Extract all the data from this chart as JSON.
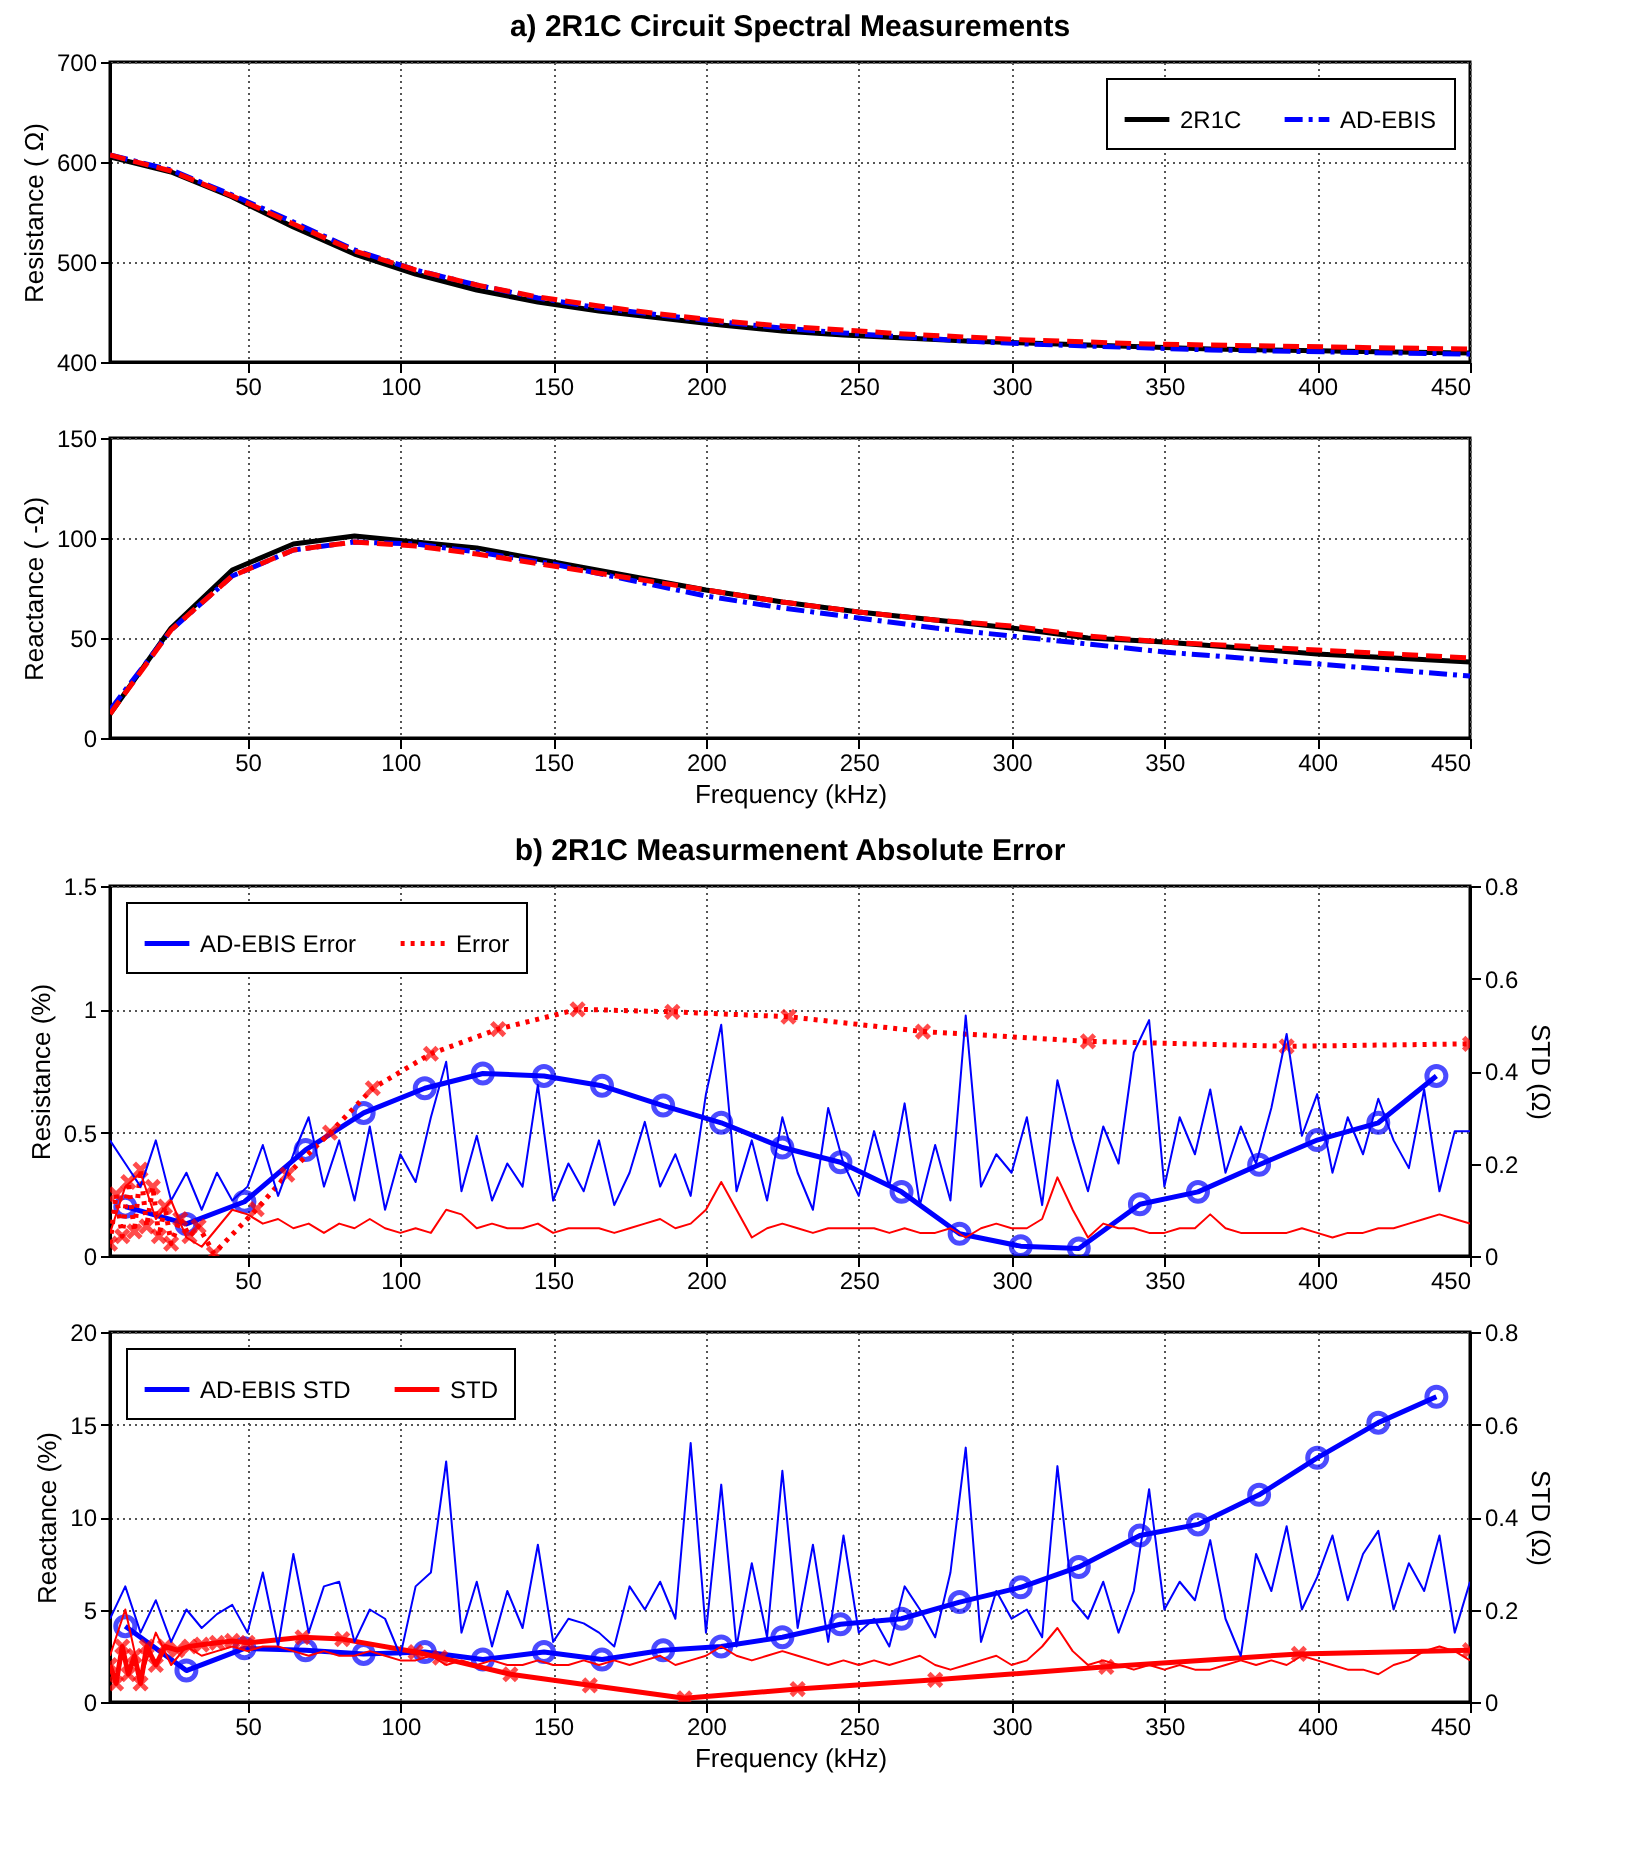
{
  "chart_data": [
    {
      "type": "line",
      "title": "a) 2R1C Circuit Spectral Measurements",
      "ylabel": "Resistance ( Ω)",
      "xlim": [
        5,
        450
      ],
      "xticks": [
        50,
        100,
        150,
        200,
        250,
        300,
        350,
        400,
        450
      ],
      "ylim": [
        400,
        700
      ],
      "yticks": [
        400,
        500,
        600,
        700
      ],
      "grid": true,
      "legend": "top right",
      "x": [
        5,
        25,
        45,
        65,
        85,
        105,
        125,
        145,
        165,
        185,
        205,
        225,
        245,
        265,
        285,
        305,
        325,
        345,
        365,
        385,
        405,
        425,
        450
      ],
      "series": [
        {
          "name": "2R1C",
          "color": "#000000",
          "line_style": "solid",
          "values": [
            605,
            590,
            565,
            535,
            508,
            488,
            472,
            460,
            451,
            444,
            437,
            431,
            427,
            424,
            421,
            419,
            417,
            415,
            413,
            412,
            411,
            410,
            409
          ]
        },
        {
          "name": "AD-EBIS",
          "color": "#0000ff",
          "line_style": "dashdot",
          "values": [
            607,
            592,
            567,
            540,
            512,
            492,
            477,
            464,
            454,
            447,
            440,
            434,
            429,
            425,
            421,
            418,
            416,
            414,
            412,
            411,
            410,
            409,
            408
          ]
        },
        {
          "color": "#ff0000",
          "line_style": "dashed",
          "values": [
            607,
            591,
            566,
            538,
            511,
            492,
            477,
            465,
            456,
            448,
            441,
            436,
            432,
            428,
            425,
            422,
            420,
            418,
            417,
            416,
            415,
            414,
            413
          ]
        }
      ]
    },
    {
      "type": "line",
      "xlabel": "Frequency (kHz)",
      "ylabel": "Reactance ( -Ω)",
      "xlim": [
        5,
        450
      ],
      "xticks": [
        50,
        100,
        150,
        200,
        250,
        300,
        350,
        400,
        450
      ],
      "ylim": [
        0,
        150
      ],
      "yticks": [
        0,
        50,
        100,
        150
      ],
      "grid": true,
      "x": [
        5,
        25,
        45,
        65,
        85,
        105,
        125,
        150,
        175,
        200,
        225,
        250,
        275,
        300,
        325,
        350,
        375,
        400,
        425,
        450
      ],
      "series": [
        {
          "color": "#000000",
          "line_style": "solid",
          "values": [
            12,
            55,
            84,
            97,
            101,
            98,
            95,
            88,
            81,
            74,
            68,
            63,
            59,
            55,
            50,
            48,
            45,
            42,
            40,
            38
          ]
        },
        {
          "color": "#0000ff",
          "line_style": "dashdot",
          "values": [
            14,
            54,
            81,
            94,
            98,
            97,
            93,
            87,
            79,
            71,
            65,
            60,
            55,
            51,
            47,
            43,
            40,
            37,
            34,
            31
          ]
        },
        {
          "color": "#ff0000",
          "line_style": "dashed",
          "values": [
            12,
            54,
            81,
            94,
            98,
            96,
            92,
            86,
            80,
            74,
            68,
            63,
            59,
            56,
            51,
            48,
            46,
            44,
            42,
            40
          ]
        }
      ]
    },
    {
      "type": "line",
      "title": "b) 2R1C Measurmenent Absolute Error",
      "ylabel": "Resistance (%)",
      "y2label": "STD (Ω)",
      "xlim": [
        5,
        450
      ],
      "xticks": [
        50,
        100,
        150,
        200,
        250,
        300,
        350,
        400,
        450
      ],
      "ylim": [
        0,
        1.5
      ],
      "yticks": [
        0,
        0.5,
        1,
        1.5
      ],
      "y2lim": [
        0,
        0.8
      ],
      "y2ticks": [
        0,
        0.2,
        0.4,
        0.6,
        0.8
      ],
      "grid": true,
      "legend": "top left",
      "series": [
        {
          "color": "#0000ff",
          "line_style": "solid",
          "marker": "none",
          "axis": "y2",
          "x": [
            5,
            10,
            15,
            20,
            25,
            30,
            35,
            40,
            45,
            50,
            55,
            60,
            65,
            70,
            75,
            80,
            85,
            90,
            95,
            100,
            105,
            110,
            115,
            120,
            125,
            130,
            135,
            140,
            145,
            150,
            155,
            160,
            165,
            170,
            175,
            180,
            185,
            190,
            195,
            200,
            205,
            210,
            215,
            220,
            225,
            230,
            235,
            240,
            245,
            250,
            255,
            260,
            265,
            270,
            275,
            280,
            285,
            290,
            295,
            300,
            305,
            310,
            315,
            320,
            325,
            330,
            335,
            340,
            345,
            350,
            355,
            360,
            365,
            370,
            375,
            380,
            385,
            390,
            395,
            400,
            405,
            410,
            415,
            420,
            425,
            430,
            435,
            440,
            445,
            450
          ],
          "values": [
            0.25,
            0.2,
            0.15,
            0.25,
            0.12,
            0.18,
            0.1,
            0.18,
            0.12,
            0.15,
            0.24,
            0.13,
            0.22,
            0.3,
            0.15,
            0.25,
            0.12,
            0.28,
            0.1,
            0.22,
            0.16,
            0.3,
            0.42,
            0.14,
            0.26,
            0.12,
            0.2,
            0.15,
            0.37,
            0.12,
            0.2,
            0.14,
            0.25,
            0.11,
            0.18,
            0.29,
            0.15,
            0.22,
            0.13,
            0.35,
            0.5,
            0.14,
            0.25,
            0.12,
            0.3,
            0.18,
            0.1,
            0.32,
            0.2,
            0.13,
            0.27,
            0.15,
            0.33,
            0.11,
            0.24,
            0.12,
            0.52,
            0.15,
            0.22,
            0.18,
            0.3,
            0.11,
            0.38,
            0.25,
            0.14,
            0.28,
            0.2,
            0.44,
            0.51,
            0.15,
            0.3,
            0.22,
            0.36,
            0.18,
            0.28,
            0.2,
            0.32,
            0.48,
            0.26,
            0.35,
            0.18,
            0.3,
            0.22,
            0.34,
            0.25,
            0.19,
            0.36,
            0.14,
            0.27,
            0.27
          ]
        },
        {
          "color": "#ff0000",
          "line_style": "solid",
          "marker": "none",
          "axis": "y2",
          "x": [
            5,
            10,
            15,
            20,
            25,
            30,
            35,
            40,
            45,
            50,
            55,
            60,
            65,
            70,
            75,
            80,
            85,
            90,
            95,
            100,
            105,
            110,
            115,
            120,
            125,
            130,
            135,
            140,
            145,
            150,
            155,
            160,
            165,
            170,
            175,
            180,
            185,
            190,
            195,
            200,
            205,
            210,
            215,
            220,
            225,
            230,
            235,
            240,
            245,
            250,
            255,
            260,
            265,
            270,
            275,
            280,
            285,
            290,
            295,
            300,
            305,
            310,
            315,
            320,
            325,
            330,
            335,
            340,
            345,
            350,
            355,
            360,
            365,
            370,
            375,
            380,
            385,
            390,
            395,
            400,
            405,
            410,
            415,
            420,
            425,
            430,
            435,
            440,
            445,
            450
          ],
          "values": [
            0.05,
            0.15,
            0.18,
            0.08,
            0.12,
            0.04,
            0.02,
            0.06,
            0.1,
            0.09,
            0.07,
            0.08,
            0.06,
            0.07,
            0.05,
            0.07,
            0.06,
            0.08,
            0.06,
            0.05,
            0.06,
            0.05,
            0.1,
            0.09,
            0.06,
            0.07,
            0.06,
            0.06,
            0.07,
            0.05,
            0.06,
            0.06,
            0.06,
            0.05,
            0.06,
            0.07,
            0.08,
            0.06,
            0.07,
            0.1,
            0.16,
            0.1,
            0.04,
            0.06,
            0.07,
            0.06,
            0.05,
            0.06,
            0.06,
            0.06,
            0.06,
            0.05,
            0.06,
            0.05,
            0.05,
            0.06,
            0.04,
            0.06,
            0.07,
            0.06,
            0.06,
            0.08,
            0.17,
            0.1,
            0.04,
            0.07,
            0.06,
            0.06,
            0.05,
            0.05,
            0.06,
            0.06,
            0.09,
            0.06,
            0.05,
            0.05,
            0.05,
            0.05,
            0.06,
            0.05,
            0.04,
            0.05,
            0.05,
            0.06,
            0.06,
            0.07,
            0.08,
            0.09,
            0.08,
            0.07
          ]
        },
        {
          "name": "AD-EBIS Error",
          "color": "#0000ff",
          "line_style": "solid",
          "marker": "circle",
          "x": [
            10,
            30,
            49,
            69,
            88,
            108,
            127,
            147,
            166,
            186,
            205,
            225,
            244,
            264,
            283,
            303,
            322,
            342,
            361,
            381,
            400,
            420,
            439
          ],
          "values": [
            0.2,
            0.13,
            0.22,
            0.43,
            0.58,
            0.68,
            0.74,
            0.73,
            0.69,
            0.61,
            0.54,
            0.44,
            0.38,
            0.26,
            0.09,
            0.04,
            0.03,
            0.21,
            0.26,
            0.37,
            0.47,
            0.54,
            0.73
          ]
        },
        {
          "name": "Error",
          "color": "#ff0000",
          "line_style": "dotted",
          "marker": "cross",
          "x": [
            5,
            7,
            9,
            11,
            13,
            15,
            17,
            19,
            21,
            23,
            25,
            28,
            31,
            34,
            39,
            53,
            63,
            77,
            91,
            110,
            132,
            158,
            189,
            227,
            271,
            325,
            390,
            450
          ],
          "values": [
            0.05,
            0.25,
            0.08,
            0.3,
            0.1,
            0.35,
            0.12,
            0.28,
            0.08,
            0.2,
            0.05,
            0.15,
            0.08,
            0.12,
            0.01,
            0.19,
            0.33,
            0.5,
            0.68,
            0.82,
            0.92,
            1.0,
            0.99,
            0.97,
            0.91,
            0.87,
            0.85,
            0.86
          ]
        }
      ]
    },
    {
      "type": "line",
      "xlabel": "Frequency (kHz)",
      "ylabel": "Reactance (%)",
      "y2label": "STD (Ω)",
      "xlim": [
        5,
        450
      ],
      "xticks": [
        50,
        100,
        150,
        200,
        250,
        300,
        350,
        400,
        450
      ],
      "ylim": [
        0,
        20
      ],
      "yticks": [
        0,
        5,
        10,
        15,
        20
      ],
      "y2lim": [
        0,
        0.8
      ],
      "y2ticks": [
        0,
        0.2,
        0.4,
        0.6,
        0.8
      ],
      "grid": true,
      "legend": "top left",
      "series": [
        {
          "name": "AD-EBIS STD",
          "color": "#0000ff",
          "line_style": "solid",
          "marker": "none",
          "axis": "y2",
          "x": [
            5,
            10,
            15,
            20,
            25,
            30,
            35,
            40,
            45,
            50,
            55,
            60,
            65,
            70,
            75,
            80,
            85,
            90,
            95,
            100,
            105,
            110,
            115,
            120,
            125,
            130,
            135,
            140,
            145,
            150,
            155,
            160,
            165,
            170,
            175,
            180,
            185,
            190,
            195,
            200,
            205,
            210,
            215,
            220,
            225,
            230,
            235,
            240,
            245,
            250,
            255,
            260,
            265,
            270,
            275,
            280,
            285,
            290,
            295,
            300,
            305,
            310,
            315,
            320,
            325,
            330,
            335,
            340,
            345,
            350,
            355,
            360,
            365,
            370,
            375,
            380,
            385,
            390,
            395,
            400,
            405,
            410,
            415,
            420,
            425,
            430,
            435,
            440,
            445,
            450
          ],
          "values": [
            0.18,
            0.25,
            0.15,
            0.22,
            0.13,
            0.2,
            0.16,
            0.19,
            0.21,
            0.15,
            0.28,
            0.12,
            0.32,
            0.15,
            0.25,
            0.26,
            0.13,
            0.2,
            0.18,
            0.1,
            0.25,
            0.28,
            0.52,
            0.15,
            0.26,
            0.12,
            0.24,
            0.16,
            0.34,
            0.13,
            0.18,
            0.17,
            0.15,
            0.12,
            0.25,
            0.2,
            0.26,
            0.18,
            0.56,
            0.15,
            0.47,
            0.12,
            0.3,
            0.14,
            0.5,
            0.16,
            0.34,
            0.13,
            0.36,
            0.15,
            0.18,
            0.12,
            0.25,
            0.2,
            0.14,
            0.28,
            0.55,
            0.13,
            0.24,
            0.18,
            0.2,
            0.14,
            0.51,
            0.22,
            0.18,
            0.26,
            0.15,
            0.24,
            0.46,
            0.2,
            0.26,
            0.22,
            0.35,
            0.18,
            0.1,
            0.32,
            0.24,
            0.38,
            0.2,
            0.27,
            0.36,
            0.22,
            0.32,
            0.37,
            0.2,
            0.3,
            0.24,
            0.36,
            0.15,
            0.26
          ]
        },
        {
          "name": "STD",
          "color": "#ff0000",
          "line_style": "solid",
          "marker": "none",
          "axis": "y2",
          "x": [
            5,
            10,
            15,
            20,
            25,
            30,
            35,
            40,
            45,
            50,
            55,
            60,
            65,
            70,
            75,
            80,
            85,
            90,
            95,
            100,
            105,
            110,
            115,
            120,
            125,
            130,
            135,
            140,
            145,
            150,
            155,
            160,
            165,
            170,
            175,
            180,
            185,
            190,
            195,
            200,
            205,
            210,
            215,
            220,
            225,
            230,
            235,
            240,
            245,
            250,
            255,
            260,
            265,
            270,
            275,
            280,
            285,
            290,
            295,
            300,
            305,
            310,
            315,
            320,
            325,
            330,
            335,
            340,
            345,
            350,
            355,
            360,
            365,
            370,
            375,
            380,
            385,
            390,
            395,
            400,
            405,
            410,
            415,
            420,
            425,
            430,
            435,
            440,
            445,
            450
          ],
          "values": [
            0.1,
            0.2,
            0.05,
            0.15,
            0.08,
            0.12,
            0.1,
            0.11,
            0.12,
            0.11,
            0.12,
            0.12,
            0.11,
            0.1,
            0.11,
            0.1,
            0.1,
            0.11,
            0.1,
            0.09,
            0.09,
            0.1,
            0.08,
            0.09,
            0.08,
            0.09,
            0.08,
            0.08,
            0.09,
            0.08,
            0.08,
            0.09,
            0.08,
            0.09,
            0.08,
            0.09,
            0.1,
            0.08,
            0.09,
            0.1,
            0.12,
            0.1,
            0.09,
            0.1,
            0.11,
            0.1,
            0.09,
            0.08,
            0.09,
            0.08,
            0.09,
            0.08,
            0.09,
            0.1,
            0.08,
            0.07,
            0.08,
            0.09,
            0.1,
            0.08,
            0.09,
            0.12,
            0.16,
            0.11,
            0.08,
            0.09,
            0.08,
            0.07,
            0.08,
            0.07,
            0.08,
            0.07,
            0.07,
            0.08,
            0.09,
            0.08,
            0.09,
            0.08,
            0.1,
            0.09,
            0.08,
            0.07,
            0.07,
            0.06,
            0.08,
            0.09,
            0.11,
            0.12,
            0.11,
            0.09
          ]
        },
        {
          "color": "#0000ff",
          "line_style": "solid",
          "marker": "circle",
          "x": [
            10,
            30,
            49,
            69,
            88,
            108,
            127,
            147,
            166,
            186,
            205,
            225,
            244,
            264,
            283,
            303,
            322,
            342,
            361,
            381,
            400,
            420,
            439
          ],
          "values": [
            4.1,
            1.7,
            2.9,
            2.8,
            2.6,
            2.7,
            2.3,
            2.7,
            2.3,
            2.8,
            3.0,
            3.5,
            4.2,
            4.5,
            5.4,
            6.2,
            7.3,
            9.0,
            9.6,
            11.2,
            13.2,
            15.1,
            16.5
          ]
        },
        {
          "color": "#ff0000",
          "line_style": "solid",
          "marker": "cross",
          "x": [
            5,
            7,
            9,
            11,
            13,
            15,
            17,
            20,
            23,
            27,
            31,
            35,
            40,
            45,
            50,
            68,
            81,
            105,
            113,
            136,
            162,
            193,
            230,
            275,
            331,
            394,
            450
          ],
          "values": [
            2.0,
            1.0,
            3.0,
            1.5,
            2.5,
            1.0,
            3.0,
            2.0,
            3.0,
            2.8,
            3.0,
            3.1,
            3.2,
            3.3,
            3.2,
            3.5,
            3.4,
            2.7,
            2.4,
            1.5,
            0.9,
            0.2,
            0.7,
            1.2,
            1.9,
            2.6,
            2.8
          ]
        }
      ]
    }
  ]
}
